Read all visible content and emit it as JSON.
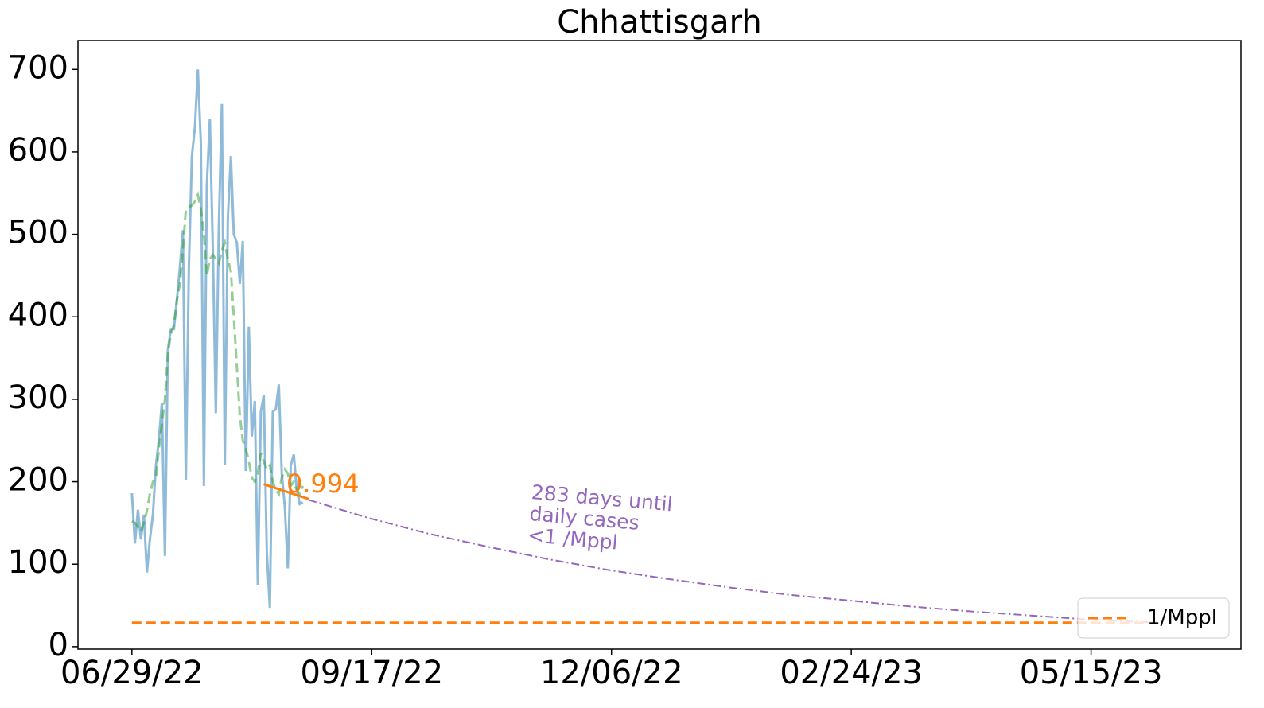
{
  "chart_data": {
    "type": "line",
    "title": "Chhattisgarh",
    "xlim": [
      "06/11/22",
      "07/04/23"
    ],
    "xticks": [
      "06/29/22",
      "09/17/22",
      "12/06/22",
      "02/24/23",
      "05/15/23"
    ],
    "ylim": [
      -3,
      735
    ],
    "yticks": [
      0,
      100,
      200,
      300,
      400,
      500,
      600,
      700
    ],
    "grid": false,
    "legend": "lower right",
    "fit_label": 0.994,
    "projection_label": [
      "283 days until",
      "daily cases",
      "<1 /Mppl"
    ],
    "series": [
      {
        "color": "#1f77b4",
        "style": "solid",
        "opacity": 0.5,
        "x": [
          "06/29/22",
          "06/30/22",
          "07/01/22",
          "07/02/22",
          "07/03/22",
          "07/04/22",
          "07/05/22",
          "07/06/22",
          "07/07/22",
          "07/08/22",
          "07/09/22",
          "07/10/22",
          "07/11/22",
          "07/12/22",
          "07/13/22",
          "07/14/22",
          "07/15/22",
          "07/16/22",
          "07/17/22",
          "07/18/22",
          "07/19/22",
          "07/20/22",
          "07/21/22",
          "07/22/22",
          "07/23/22",
          "07/24/22",
          "07/25/22",
          "07/26/22",
          "07/27/22",
          "07/28/22",
          "07/29/22",
          "07/30/22",
          "07/31/22",
          "08/01/22",
          "08/02/22",
          "08/03/22",
          "08/04/22",
          "08/05/22",
          "08/06/22",
          "08/07/22",
          "08/08/22",
          "08/09/22",
          "08/10/22",
          "08/11/22",
          "08/12/22",
          "08/13/22",
          "08/14/22",
          "08/15/22",
          "08/16/22",
          "08/17/22",
          "08/18/22",
          "08/19/22",
          "08/20/22",
          "08/21/22",
          "08/22/22",
          "08/23/22",
          "08/24/22",
          "08/25/22"
        ],
        "values": [
          186,
          125,
          166,
          130,
          160,
          90,
          130,
          160,
          220,
          250,
          296,
          110,
          360,
          385,
          385,
          420,
          460,
          505,
          202,
          460,
          595,
          630,
          700,
          610,
          195,
          560,
          640,
          480,
          283,
          510,
          658,
          220,
          520,
          595,
          500,
          490,
          440,
          492,
          213,
          388,
          255,
          298,
          75,
          285,
          305,
          115,
          47,
          285,
          288,
          318,
          210,
          170,
          95,
          220,
          233,
          190,
          173,
          175
        ]
      },
      {
        "color": "#2ca02c",
        "style": "dashed",
        "opacity": 0.5,
        "x": [
          "06/29/22",
          "06/30/22",
          "07/01/22",
          "07/02/22",
          "07/03/22",
          "07/04/22",
          "07/05/22",
          "07/06/22",
          "07/07/22",
          "07/08/22",
          "07/09/22",
          "07/10/22",
          "07/11/22",
          "07/12/22",
          "07/13/22",
          "07/14/22",
          "07/15/22",
          "07/16/22",
          "07/17/22",
          "07/18/22",
          "07/19/22",
          "07/20/22",
          "07/21/22",
          "07/22/22",
          "07/23/22",
          "07/24/22",
          "07/25/22",
          "07/26/22",
          "07/27/22",
          "07/28/22",
          "07/29/22",
          "07/30/22",
          "07/31/22",
          "08/01/22",
          "08/02/22",
          "08/03/22",
          "08/04/22",
          "08/05/22",
          "08/06/22",
          "08/07/22",
          "08/08/22",
          "08/09/22",
          "08/10/22",
          "08/11/22",
          "08/12/22",
          "08/13/22",
          "08/14/22",
          "08/15/22",
          "08/16/22",
          "08/17/22",
          "08/18/22",
          "08/19/22",
          "08/20/22",
          "08/21/22",
          "08/22/22",
          "08/23/22",
          "08/24/22",
          "08/25/22"
        ],
        "values": [
          152,
          150,
          145,
          140,
          150,
          165,
          185,
          200,
          205,
          240,
          270,
          300,
          355,
          380,
          390,
          420,
          440,
          480,
          530,
          533,
          535,
          540,
          548,
          530,
          500,
          450,
          470,
          475,
          470,
          465,
          480,
          490,
          470,
          455,
          400,
          340,
          280,
          250,
          240,
          225,
          205,
          200,
          210,
          235,
          225,
          215,
          220,
          200,
          190,
          185,
          205,
          215,
          210,
          195,
          200,
          190,
          185,
          195
        ]
      },
      {
        "color": "#ff7f0e",
        "style": "solid",
        "opacity": 1,
        "x": [
          "08/12/22",
          "08/27/22"
        ],
        "values": [
          197,
          179
        ]
      },
      {
        "color": "#9467bd",
        "style": "dashdot",
        "opacity": 1,
        "x": [
          "08/27/22",
          "09/16/22",
          "10/06/22",
          "10/26/22",
          "11/15/22",
          "12/05/22",
          "12/25/22",
          "01/14/23",
          "02/03/23",
          "02/23/23",
          "03/15/23",
          "04/04/23",
          "04/24/23",
          "05/14/23",
          "06/06/23"
        ],
        "values": [
          178,
          156,
          137,
          121,
          106,
          93,
          82,
          72,
          63,
          56,
          49,
          43,
          38,
          33,
          29
        ]
      },
      {
        "name": "1/Mppl",
        "color": "#ff7f0e",
        "style": "dashed",
        "opacity": 1,
        "x": [
          "06/29/22",
          "06/06/23"
        ],
        "values": [
          29,
          29
        ]
      }
    ]
  }
}
